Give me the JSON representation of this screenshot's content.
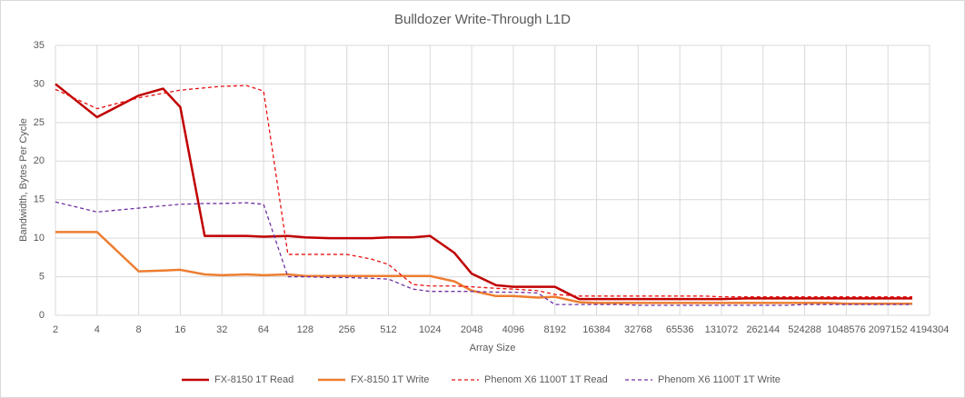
{
  "chart_data": {
    "type": "line",
    "title": "Bulldozer Write-Through L1D",
    "x_label": "Array Size",
    "y_label": "Bandwidth, Bytes Per Cycle",
    "x_scale": "log2",
    "x": [
      2,
      4,
      8,
      12,
      16,
      24,
      32,
      48,
      64,
      96,
      128,
      192,
      256,
      384,
      512,
      768,
      1024,
      1536,
      2048,
      3072,
      4096,
      6144,
      8192,
      12288,
      16384,
      24576,
      32768,
      49152,
      65536,
      98304,
      131072,
      196608,
      262144,
      393216,
      524288,
      786432,
      1048576,
      1572864,
      2097152,
      3145728
    ],
    "xlim": [
      2,
      4194304
    ],
    "xticks": [
      2,
      4,
      8,
      16,
      32,
      64,
      128,
      256,
      512,
      1024,
      2048,
      4096,
      8192,
      16384,
      32768,
      65536,
      131072,
      262144,
      524288,
      1048576,
      2097152,
      4194304
    ],
    "ylim": [
      0,
      35
    ],
    "yticks": [
      0,
      5,
      10,
      15,
      20,
      25,
      30,
      35
    ],
    "grid": true,
    "legend": "bottom",
    "series": [
      {
        "name": "FX-8150 1T Read",
        "color": "#c00000",
        "dashed": false,
        "values": [
          30,
          25.7,
          28.5,
          29.4,
          27,
          10.3,
          10.3,
          10.3,
          10.2,
          10.3,
          10.1,
          10,
          10,
          10,
          10.1,
          10.1,
          10.3,
          8.1,
          5.4,
          3.9,
          3.7,
          3.7,
          3.7,
          2.1,
          2.1,
          2.1,
          2.1,
          2.1,
          2.1,
          2.1,
          2.1,
          2.2,
          2.2,
          2.2,
          2.2,
          2.2,
          2.2,
          2.2,
          2.2,
          2.2
        ]
      },
      {
        "name": "FX-8150 1T Write",
        "color": "#ed7d31",
        "dashed": false,
        "values": [
          10.8,
          10.8,
          5.7,
          5.8,
          5.9,
          5.3,
          5.2,
          5.3,
          5.2,
          5.3,
          5.1,
          5.1,
          5.1,
          5.1,
          5.1,
          5.1,
          5.1,
          4.4,
          3.2,
          2.5,
          2.5,
          2.3,
          2.4,
          1.7,
          1.6,
          1.6,
          1.6,
          1.6,
          1.6,
          1.6,
          1.6,
          1.6,
          1.6,
          1.6,
          1.6,
          1.6,
          1.5,
          1.5,
          1.5,
          1.5
        ]
      },
      {
        "name": "Phenom X6 1100T 1T Read",
        "color": "#e81010",
        "dashed": true,
        "values": [
          29.3,
          26.8,
          28.2,
          28.8,
          29.2,
          29.5,
          29.7,
          29.8,
          29.1,
          7.9,
          7.9,
          7.9,
          7.9,
          7.3,
          6.6,
          4.0,
          3.8,
          3.8,
          3.7,
          3.5,
          3.4,
          3.2,
          2.7,
          2.5,
          2.5,
          2.5,
          2.5,
          2.5,
          2.5,
          2.5,
          2.4,
          2.4,
          2.4,
          2.4,
          2.4,
          2.4,
          2.4,
          2.4,
          2.4,
          2.4
        ]
      },
      {
        "name": "Phenom X6 1100T 1T Write",
        "color": "#7030a0",
        "dashed": true,
        "values": [
          14.7,
          13.4,
          13.9,
          14.2,
          14.4,
          14.5,
          14.5,
          14.6,
          14.4,
          5.0,
          5.0,
          4.9,
          4.9,
          4.8,
          4.7,
          3.4,
          3.1,
          3.1,
          3.1,
          3.0,
          3.0,
          2.9,
          1.4,
          1.4,
          1.4,
          1.4,
          1.3,
          1.3,
          1.3,
          1.3,
          1.3,
          1.3,
          1.3,
          1.3,
          1.4,
          1.4,
          1.4,
          1.4,
          1.4,
          1.4
        ]
      }
    ]
  }
}
